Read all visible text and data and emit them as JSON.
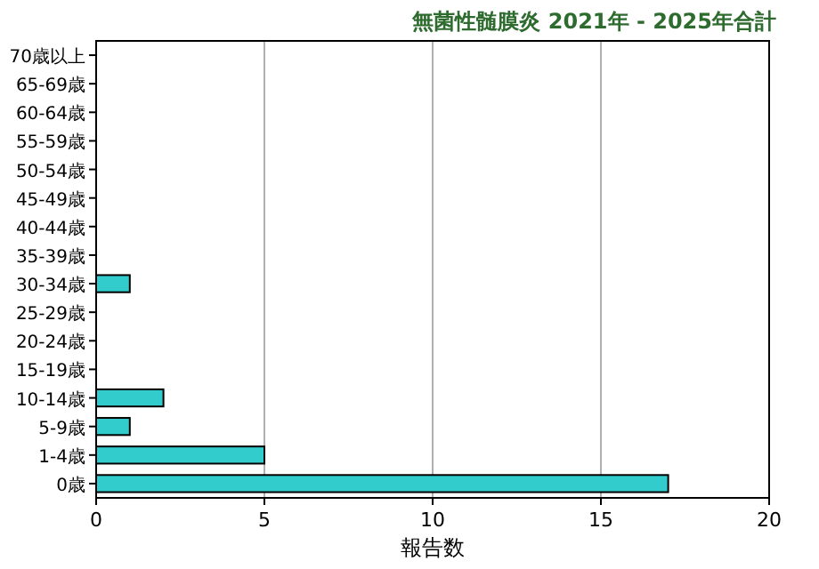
{
  "chart_data": {
    "type": "bar",
    "orientation": "horizontal",
    "title": "無菌性髄膜炎 2021年 - 2025年合計",
    "xlabel": "報告数",
    "categories": [
      "70歳以上",
      "65-69歳",
      "60-64歳",
      "55-59歳",
      "50-54歳",
      "45-49歳",
      "40-44歳",
      "35-39歳",
      "30-34歳",
      "25-29歳",
      "20-24歳",
      "15-19歳",
      "10-14歳",
      "5-9歳",
      "1-4歳",
      "0歳"
    ],
    "values": [
      0,
      0,
      0,
      0,
      0,
      0,
      0,
      0,
      1,
      0,
      0,
      0,
      2,
      1,
      5,
      17
    ],
    "color": "#33cccc",
    "xlim": [
      0,
      20
    ],
    "xticks": [
      0,
      5,
      10,
      15,
      20
    ],
    "grid": "x"
  }
}
